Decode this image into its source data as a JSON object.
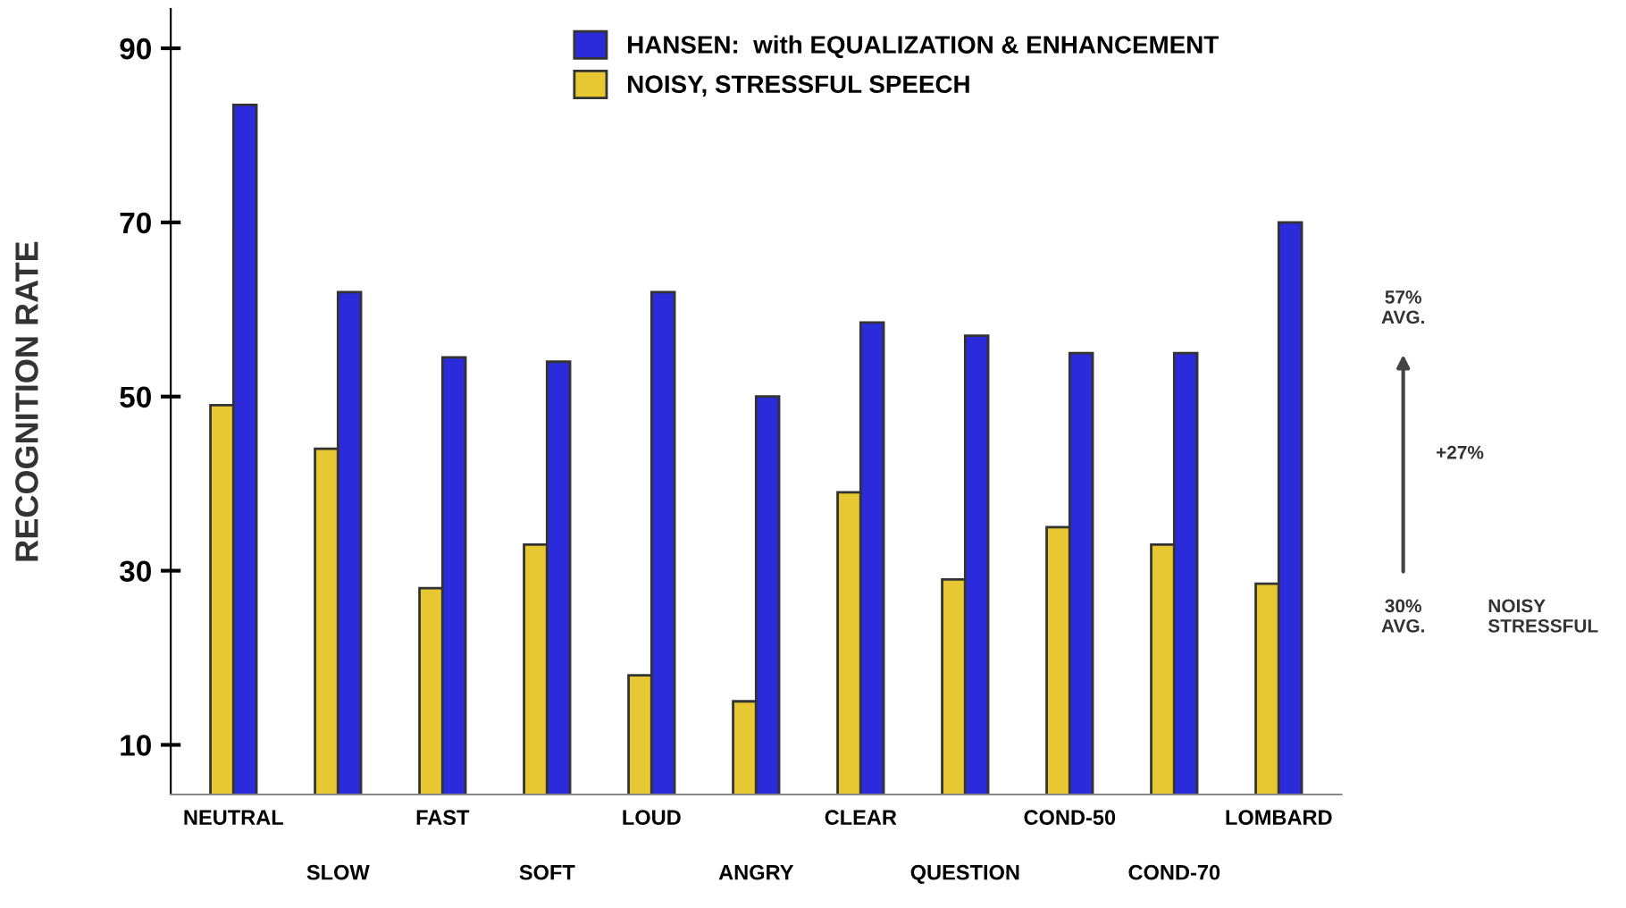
{
  "chart_data": {
    "type": "bar",
    "ylabel": "RECOGNITION RATE",
    "categories": [
      "NEUTRAL",
      "SLOW",
      "FAST",
      "SOFT",
      "LOUD",
      "ANGRY",
      "CLEAR",
      "QUESTION",
      "COND-50",
      "COND-70",
      "LOMBARD"
    ],
    "series": [
      {
        "name": "NOISY, STRESSFUL SPEECH",
        "color": "#e8c832",
        "values": [
          49,
          44,
          28,
          33,
          18,
          15,
          39,
          29,
          35,
          33,
          28.5
        ]
      },
      {
        "name": "HANSEN:  with EQUALIZATION & ENHANCEMENT",
        "color": "#2b2bdc",
        "values": [
          83.5,
          62,
          54.5,
          54,
          62,
          50,
          58.5,
          57,
          55,
          55,
          70
        ]
      }
    ],
    "ylim": [
      4.3,
      94.5
    ],
    "yticks": [
      10,
      30,
      50,
      70,
      90
    ],
    "grid": false,
    "legend": "top",
    "annotations": [
      "57%\nAVG.",
      "+27%",
      "30%\nAVG.",
      "NOISY\nSTRESSFUL"
    ]
  }
}
